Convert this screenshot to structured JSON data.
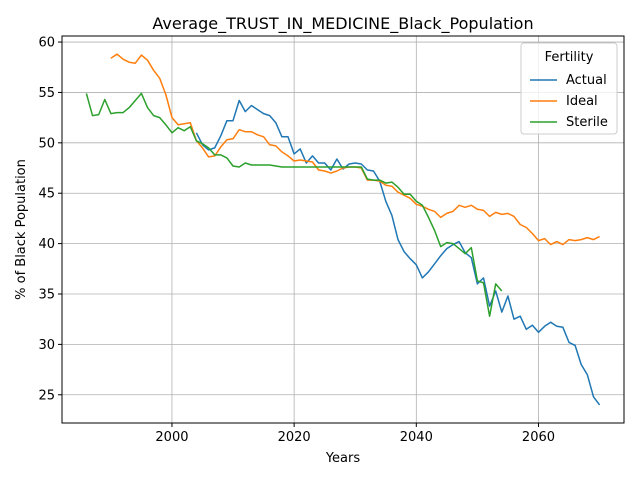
{
  "chart_data": {
    "type": "line",
    "title": "Average_TRUST_IN_MEDICINE_Black_Population",
    "xlabel": "Years",
    "ylabel": "% of Black Population",
    "xlim": [
      1982,
      2074
    ],
    "ylim": [
      22.2,
      60.6
    ],
    "xticks": [
      2000,
      2020,
      2040,
      2060
    ],
    "yticks": [
      25,
      30,
      35,
      40,
      45,
      50,
      55,
      60
    ],
    "grid": true,
    "legend": {
      "title": "Fertility",
      "placement": "top-right"
    },
    "series": [
      {
        "name": "Actual",
        "color": "#1f77b4",
        "x": [
          2004,
          2005,
          2006,
          2007,
          2008,
          2009,
          2010,
          2011,
          2012,
          2013,
          2014,
          2015,
          2016,
          2017,
          2018,
          2019,
          2020,
          2021,
          2022,
          2023,
          2024,
          2025,
          2026,
          2027,
          2028,
          2029,
          2030,
          2031,
          2032,
          2033,
          2034,
          2035,
          2036,
          2037,
          2038,
          2039,
          2040,
          2041,
          2042,
          2043,
          2044,
          2045,
          2046,
          2047,
          2048,
          2049,
          2050,
          2051,
          2052,
          2053,
          2054,
          2055,
          2056,
          2057,
          2058,
          2059,
          2060,
          2061,
          2062,
          2063,
          2064,
          2065,
          2066,
          2067,
          2068,
          2069,
          2070
        ],
        "y": [
          51.0,
          49.8,
          49.3,
          49.5,
          50.7,
          52.2,
          52.2,
          54.2,
          53.1,
          53.7,
          53.3,
          52.9,
          52.7,
          52.0,
          50.6,
          50.6,
          48.9,
          49.4,
          48.0,
          48.7,
          48.0,
          48.0,
          47.3,
          48.4,
          47.4,
          47.9,
          48.0,
          47.9,
          47.3,
          47.2,
          46.2,
          44.2,
          42.8,
          40.4,
          39.2,
          38.5,
          37.9,
          36.6,
          37.2,
          38.0,
          38.8,
          39.5,
          39.9,
          40.2,
          39.1,
          38.6,
          36.0,
          36.6,
          33.8,
          35.3,
          33.2,
          34.8,
          32.5,
          32.8,
          31.5,
          31.9,
          31.2,
          31.8,
          32.2,
          31.8,
          31.7,
          30.2,
          29.9,
          28.0,
          27.0,
          24.8,
          24.0
        ]
      },
      {
        "name": "Ideal",
        "color": "#ff7f0e",
        "x": [
          1990,
          1991,
          1992,
          1993,
          1994,
          1995,
          1996,
          1997,
          1998,
          1999,
          2000,
          2001,
          2002,
          2003,
          2004,
          2005,
          2006,
          2007,
          2008,
          2009,
          2010,
          2011,
          2012,
          2013,
          2014,
          2015,
          2016,
          2017,
          2018,
          2019,
          2020,
          2021,
          2022,
          2023,
          2024,
          2025,
          2026,
          2027,
          2028,
          2029,
          2030,
          2031,
          2032,
          2033,
          2034,
          2035,
          2036,
          2037,
          2038,
          2039,
          2040,
          2041,
          2042,
          2043,
          2044,
          2045,
          2046,
          2047,
          2048,
          2049,
          2050,
          2051,
          2052,
          2053,
          2054,
          2055,
          2056,
          2057,
          2058,
          2059,
          2060,
          2061,
          2062,
          2063,
          2064,
          2065,
          2066,
          2067,
          2068,
          2069,
          2070
        ],
        "y": [
          58.4,
          58.8,
          58.3,
          58.0,
          57.9,
          58.7,
          58.2,
          57.2,
          56.4,
          54.8,
          52.5,
          51.8,
          51.9,
          52.0,
          50.2,
          49.5,
          48.6,
          48.7,
          49.6,
          50.3,
          50.4,
          51.3,
          51.1,
          51.1,
          50.8,
          50.6,
          49.8,
          49.7,
          49.1,
          48.7,
          48.2,
          48.3,
          48.2,
          48.1,
          47.3,
          47.2,
          47.0,
          47.2,
          47.5,
          47.6,
          47.6,
          47.5,
          46.3,
          46.3,
          46.2,
          45.8,
          45.7,
          45.1,
          44.8,
          44.5,
          43.9,
          43.7,
          43.4,
          43.2,
          42.6,
          43.0,
          43.2,
          43.8,
          43.6,
          43.8,
          43.4,
          43.3,
          42.7,
          43.1,
          42.9,
          43.0,
          42.7,
          41.9,
          41.6,
          41.0,
          40.3,
          40.5,
          39.9,
          40.2,
          39.9,
          40.4,
          40.3,
          40.4,
          40.6,
          40.4,
          40.7
        ]
      },
      {
        "name": "Sterile",
        "color": "#2ca02c",
        "x": [
          1986,
          1987,
          1988,
          1989,
          1990,
          1991,
          1992,
          1993,
          1994,
          1995,
          1996,
          1997,
          1998,
          1999,
          2000,
          2001,
          2002,
          2003,
          2004,
          2005,
          2006,
          2007,
          2008,
          2009,
          2010,
          2011,
          2012,
          2013,
          2014,
          2015,
          2016,
          2017,
          2018,
          2019,
          2020,
          2021,
          2022,
          2023,
          2024,
          2025,
          2026,
          2027,
          2028,
          2029,
          2030,
          2031,
          2032,
          2033,
          2034,
          2035,
          2036,
          2037,
          2038,
          2039,
          2040,
          2041,
          2042,
          2043,
          2044,
          2045,
          2046,
          2047,
          2048,
          2049,
          2050,
          2051,
          2052,
          2053,
          2054
        ],
        "y": [
          54.9,
          52.7,
          52.8,
          54.3,
          52.9,
          53.0,
          53.0,
          53.5,
          54.2,
          54.9,
          53.5,
          52.7,
          52.5,
          51.8,
          51.0,
          51.5,
          51.2,
          51.6,
          50.2,
          49.9,
          49.5,
          48.8,
          48.8,
          48.5,
          47.7,
          47.6,
          48.0,
          47.8,
          47.8,
          47.8,
          47.8,
          47.7,
          47.6,
          47.6,
          47.6,
          47.6,
          47.6,
          47.6,
          47.6,
          47.6,
          47.6,
          47.6,
          47.6,
          47.6,
          47.6,
          47.6,
          46.4,
          46.3,
          46.3,
          46.0,
          46.1,
          45.6,
          44.9,
          44.9,
          44.2,
          43.8,
          42.6,
          41.3,
          39.7,
          40.1,
          40.0,
          39.5,
          39.0,
          39.6,
          36.3,
          36.1,
          32.8,
          36.0,
          35.3
        ]
      }
    ]
  }
}
